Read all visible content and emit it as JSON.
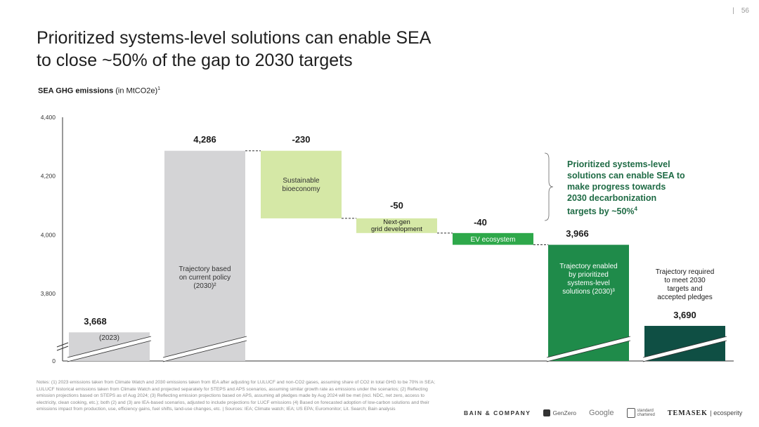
{
  "page": {
    "number": "56",
    "title_line1": "Prioritized systems-level solutions can enable SEA",
    "title_line2": "to close ~50% of the gap to 2030 targets",
    "subtitle_bold": "SEA GHG emissions",
    "subtitle_unit": " (in MtCO2e)",
    "subtitle_sup": "1"
  },
  "callout": {
    "text": "Prioritized systems-level solutions can enable SEA to make progress towards 2030 decarbonization targets by ~50%",
    "sup": "4"
  },
  "notes": "Notes: (1) 2023 emissions taken from Climate Watch and 2030 emissions taken from IEA after adjusting for LULUCF and non-CO2 gases, assuming share of CO2 in total GHG to be 70% in SEA; LULUCF historical emissions taken from Climate Watch and projected separately for STEPS and APS scenarios, assuming similar growth rate as emissions under the scenarios; (2) Reflecting emission projections based on STEPS as of Aug 2024; (3) Reflecting emission projections based on APS, assuming all pledges made by Aug 2024 will be met (incl. NDC, net zero, access to electricity, clean cooking, etc.); both (2) and (3) are IEA-based scenarios, adjusted to include projections for LUCF emissions (4) Based on forecasted adoption of low-carbon solutions and their emissions impact from production, use, efficiency gains, fuel shifts, land-use changes, etc. | Sources: IEA; Climate watch; IEA; US EPA; Euromonitor; Lit. Search; Bain analysis",
  "logos": {
    "bain": "BAIN & COMPANY",
    "genzero": "GenZero",
    "google": "Google",
    "standard_line1": "standard",
    "standard_line2": "chartered",
    "temasek": "TEMASEK",
    "ecosperity": "| ecosperity"
  },
  "colors": {
    "grey_bar": "#d4d4d6",
    "light_green": "#d5e8a6",
    "bright_green": "#2ea84a",
    "dark_green": "#1f8b4a",
    "darkest_green": "#0f4f44",
    "callout_text": "#1f6b45"
  },
  "chart_data": {
    "type": "bar",
    "subtype": "waterfall",
    "title": "SEA GHG emissions (in MtCO2e)",
    "ylabel": "",
    "ylim": [
      3700,
      4400
    ],
    "axis_break": true,
    "yticks": [
      "0",
      "3,800",
      "4,000",
      "4,200",
      "4,400"
    ],
    "ytick_values": [
      0,
      3800,
      4000,
      4200,
      4400
    ],
    "grid": false,
    "bars": [
      {
        "label_lines": [
          "(2023)"
        ],
        "value": 3668,
        "value_label": "3,668",
        "kind": "total",
        "color": "#d4d4d6",
        "label_pos": "inside"
      },
      {
        "label_lines": [
          "Trajectory based",
          "on current policy",
          "(2030)²"
        ],
        "value": 4286,
        "value_label": "4,286",
        "kind": "total",
        "color": "#d4d4d6",
        "label_pos": "inside"
      },
      {
        "label_lines": [
          "Sustainable",
          "bioeconomy"
        ],
        "value": -230,
        "value_label": "-230",
        "kind": "delta",
        "color": "#d5e8a6",
        "label_pos": "inside"
      },
      {
        "label_lines": [
          "Next-gen",
          "grid development"
        ],
        "value": -50,
        "value_label": "-50",
        "kind": "delta",
        "color": "#d5e8a6",
        "label_pos": "inside"
      },
      {
        "label_lines": [
          "EV ecosystem"
        ],
        "value": -40,
        "value_label": "-40",
        "kind": "delta",
        "color": "#2ea84a",
        "label_pos": "inside"
      },
      {
        "label_lines": [
          "Trajectory enabled",
          "by prioritized",
          "systems-level",
          "solutions (2030)³"
        ],
        "value": 3966,
        "value_label": "3,966",
        "kind": "total",
        "color": "#1f8b4a",
        "label_pos": "inside"
      },
      {
        "label_lines": [
          "Trajectory required",
          "to meet 2030",
          "targets and",
          "accepted pledges"
        ],
        "value": 3690,
        "value_label": "3,690",
        "kind": "total",
        "color": "#0f4f44",
        "label_pos": "above"
      }
    ]
  }
}
